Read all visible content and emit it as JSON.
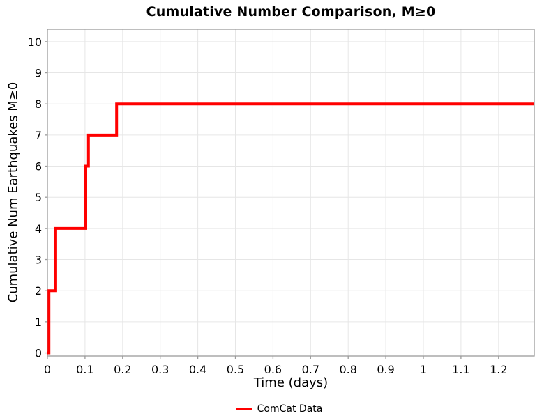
{
  "chart_data": {
    "type": "line",
    "step_mode": "post",
    "title": "Cumulative Number Comparison, M≥0",
    "xlabel": "Time (days)",
    "ylabel": "Cumulative Num Earthquakes M≥0",
    "xlim": [
      0,
      1.295
    ],
    "ylim": [
      -0.1,
      10.4
    ],
    "xticks": [
      0,
      0.1,
      0.2,
      0.3,
      0.4,
      0.5,
      0.6,
      0.7,
      0.8,
      0.9,
      1,
      1.1,
      1.2
    ],
    "xtick_labels": [
      "0",
      "0.1",
      "0.2",
      "0.3",
      "0.4",
      "0.5",
      "0.6",
      "0.7",
      "0.8",
      "0.9",
      "1",
      "1.1",
      "1.2"
    ],
    "yticks": [
      0,
      1,
      2,
      3,
      4,
      5,
      6,
      7,
      8,
      9,
      10
    ],
    "ytick_labels": [
      "0",
      "1",
      "2",
      "3",
      "4",
      "5",
      "6",
      "7",
      "8",
      "9",
      "10"
    ],
    "grid": true,
    "legend": {
      "position": "bottom-center",
      "entries": [
        {
          "label": "ComCat Data",
          "color": "#ff0000"
        }
      ]
    },
    "series": [
      {
        "name": "ComCat Data",
        "color": "#ff0000",
        "line_width": 4,
        "points": [
          [
            0,
            0
          ],
          [
            0.004,
            2
          ],
          [
            0.022,
            4
          ],
          [
            0.102,
            6
          ],
          [
            0.109,
            7
          ],
          [
            0.184,
            8
          ],
          [
            1.295,
            8
          ]
        ]
      }
    ],
    "colors": {
      "grid": "#e6e6e6",
      "frame": "#9b9b9b",
      "text": "#000000",
      "background": "#ffffff"
    }
  }
}
